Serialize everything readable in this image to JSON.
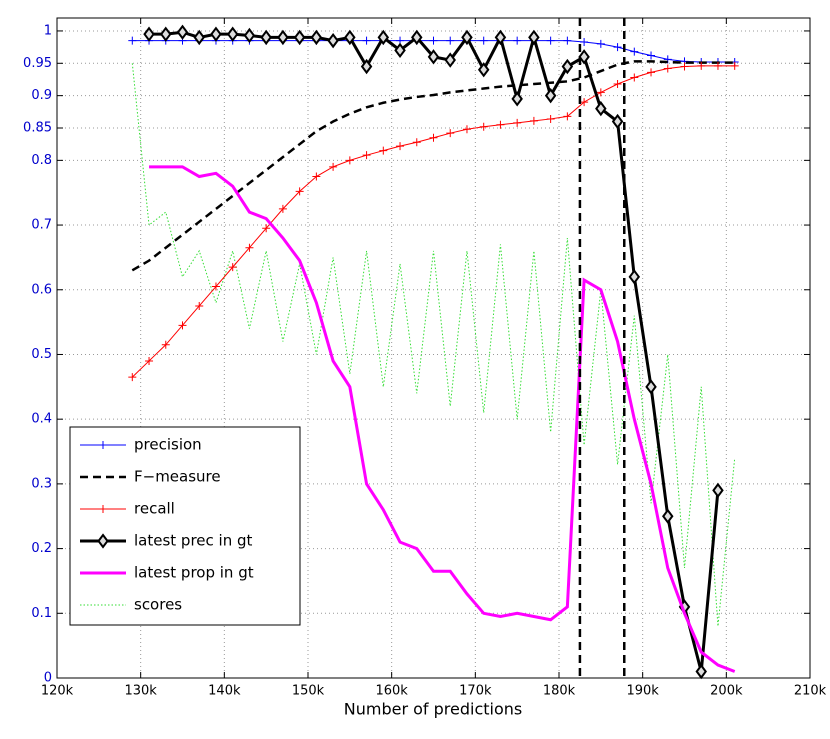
{
  "chart_data": {
    "type": "line",
    "x_label": "Number of predictions",
    "xlim": [
      120000,
      210000
    ],
    "ylim": [
      0,
      1.02
    ],
    "xticks": [
      {
        "value": 120000,
        "label": "120k"
      },
      {
        "value": 130000,
        "label": "130k"
      },
      {
        "value": 140000,
        "label": "140k"
      },
      {
        "value": 150000,
        "label": "150k"
      },
      {
        "value": 160000,
        "label": "160k"
      },
      {
        "value": 170000,
        "label": "170k"
      },
      {
        "value": 180000,
        "label": "180k"
      },
      {
        "value": 190000,
        "label": "190k"
      },
      {
        "value": 200000,
        "label": "200k"
      },
      {
        "value": 210000,
        "label": "210k"
      }
    ],
    "yticks": [
      0,
      0.1,
      0.2,
      0.3,
      0.4,
      0.5,
      0.6,
      0.7,
      0.8,
      0.85,
      0.9,
      0.95,
      1
    ],
    "grid": true,
    "legend": "lower left",
    "vlines": [
      182500,
      187800
    ],
    "x": [
      129000,
      131000,
      133000,
      135000,
      137000,
      139000,
      141000,
      143000,
      145000,
      147000,
      149000,
      151000,
      153000,
      155000,
      157000,
      159000,
      161000,
      163000,
      165000,
      167000,
      169000,
      171000,
      173000,
      175000,
      177000,
      179000,
      181000,
      183000,
      185000,
      187000,
      189000,
      191000,
      193000,
      195000,
      197000,
      199000,
      201000
    ],
    "series": [
      {
        "name": "precision",
        "color": "#0000ff",
        "line_style": "solid",
        "width": 1,
        "marker": "plus",
        "values": [
          0.985,
          0.985,
          0.985,
          0.985,
          0.985,
          0.985,
          0.985,
          0.985,
          0.985,
          0.985,
          0.985,
          0.985,
          0.985,
          0.985,
          0.985,
          0.985,
          0.985,
          0.985,
          0.985,
          0.985,
          0.985,
          0.985,
          0.985,
          0.985,
          0.985,
          0.985,
          0.985,
          0.983,
          0.98,
          0.975,
          0.968,
          0.962,
          0.956,
          0.953,
          0.952,
          0.952,
          0.952
        ]
      },
      {
        "name": "F−measure",
        "color": "#000000",
        "line_style": "dashed",
        "width": 2.5,
        "marker": "none",
        "values": [
          0.63,
          0.645,
          0.665,
          0.685,
          0.705,
          0.725,
          0.745,
          0.765,
          0.785,
          0.805,
          0.825,
          0.845,
          0.86,
          0.872,
          0.882,
          0.889,
          0.894,
          0.898,
          0.901,
          0.905,
          0.908,
          0.911,
          0.914,
          0.916,
          0.918,
          0.92,
          0.922,
          0.928,
          0.938,
          0.948,
          0.953,
          0.953,
          0.952,
          0.951,
          0.951,
          0.951,
          0.951
        ]
      },
      {
        "name": "recall",
        "color": "#ff0000",
        "line_style": "solid",
        "width": 1,
        "marker": "plus",
        "values": [
          0.465,
          0.49,
          0.515,
          0.545,
          0.575,
          0.605,
          0.635,
          0.665,
          0.695,
          0.725,
          0.752,
          0.775,
          0.79,
          0.8,
          0.808,
          0.815,
          0.822,
          0.828,
          0.835,
          0.842,
          0.848,
          0.852,
          0.855,
          0.858,
          0.861,
          0.864,
          0.868,
          0.89,
          0.905,
          0.918,
          0.928,
          0.936,
          0.942,
          0.945,
          0.946,
          0.946,
          0.946
        ]
      },
      {
        "name": "latest prec in gt",
        "color": "#000000",
        "line_style": "solid",
        "width": 3,
        "marker": "diamond",
        "values": [
          null,
          0.995,
          0.995,
          0.998,
          0.99,
          0.995,
          0.995,
          0.993,
          0.99,
          0.99,
          0.99,
          0.99,
          0.985,
          0.99,
          0.945,
          0.99,
          0.97,
          0.99,
          0.96,
          0.955,
          0.99,
          0.94,
          0.99,
          0.895,
          0.99,
          0.9,
          0.945,
          0.96,
          0.88,
          0.86,
          0.62,
          0.45,
          0.25,
          0.11,
          0.01,
          0.29,
          null
        ]
      },
      {
        "name": "latest prop in gt",
        "color": "#ff00ff",
        "line_style": "solid",
        "width": 3,
        "marker": "none",
        "values": [
          null,
          0.79,
          0.79,
          0.79,
          0.775,
          0.78,
          0.76,
          0.72,
          0.71,
          0.68,
          0.645,
          0.58,
          0.49,
          0.45,
          0.3,
          0.26,
          0.21,
          0.2,
          0.165,
          0.165,
          0.13,
          0.1,
          0.095,
          0.1,
          0.095,
          0.09,
          0.11,
          0.615,
          0.6,
          0.52,
          0.4,
          0.3,
          0.17,
          0.1,
          0.04,
          0.02,
          0.01
        ]
      },
      {
        "name": "scores",
        "color": "#33dd33",
        "line_style": "dotted",
        "width": 1,
        "marker": "none",
        "values": [
          0.95,
          0.7,
          0.72,
          0.62,
          0.66,
          0.58,
          0.66,
          0.54,
          0.66,
          0.52,
          0.64,
          0.5,
          0.65,
          0.47,
          0.66,
          0.45,
          0.64,
          0.44,
          0.66,
          0.42,
          0.66,
          0.41,
          0.67,
          0.4,
          0.66,
          0.38,
          0.68,
          0.36,
          0.6,
          0.33,
          0.56,
          0.27,
          0.5,
          0.17,
          0.45,
          0.08,
          0.34
        ]
      }
    ]
  }
}
